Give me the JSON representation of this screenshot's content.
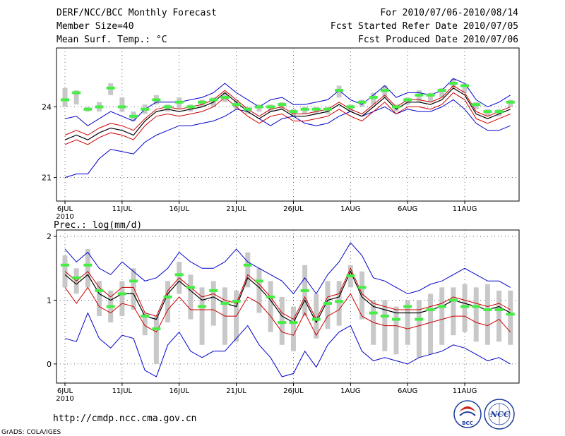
{
  "header": {
    "left": [
      "DERF/NCC/BCC Monthly Forecast",
      "Member Size=40",
      "Mean Surf. Temp.: °C"
    ],
    "right": [
      "For 2010/07/06-2010/08/14",
      "Fcst Started Refer Date 2010/07/05",
      "Fcst Produced Date 2010/07/06"
    ]
  },
  "footer": {
    "url": "http://cmdp.ncc.cma.gov.cn",
    "credit": "GrADS: COLA/IGES"
  },
  "logos": {
    "bcc_text": "BCC",
    "ncc_text": "NCC"
  },
  "colors": {
    "envelope": "#0000cc",
    "spread": "#cc0000",
    "mean": "#000000",
    "observed": "#44ee44",
    "box": "#c8c8c8"
  },
  "chart_data": [
    {
      "type": "line",
      "title": "Mean Surf. Temp.: °C",
      "x_tick_labels": [
        "6JUL",
        "11JUL",
        "16JUL",
        "21JUL",
        "26JUL",
        "1AUG",
        "6AUG",
        "11AUG"
      ],
      "x_tick_days": [
        0,
        5,
        10,
        15,
        20,
        25,
        30,
        35
      ],
      "x_year_label": "2010",
      "ylim": [
        20,
        26.5
      ],
      "yticks": [
        21,
        24
      ],
      "days": 40,
      "series": [
        {
          "name": "max",
          "color": "#0000cc",
          "values": [
            21.0,
            21.15,
            21.15,
            21.8,
            22.2,
            22.1,
            22.0,
            22.5,
            22.8,
            23.0,
            23.2,
            23.2,
            23.3,
            23.4,
            23.6,
            23.9,
            23.8,
            23.5,
            23.2,
            23.5,
            23.6,
            23.3,
            23.2,
            23.3,
            23.6,
            23.8,
            23.6,
            23.8,
            24.0,
            23.7,
            23.9,
            23.8,
            23.8,
            24.0,
            24.3,
            23.9,
            23.3,
            23.0,
            23.0,
            23.2
          ]
        },
        {
          "name": "upper",
          "color": "#cc0000",
          "values": [
            22.8,
            23.0,
            22.8,
            23.1,
            23.3,
            23.2,
            23.0,
            23.5,
            23.9,
            24.0,
            23.9,
            24.0,
            24.1,
            24.3,
            24.7,
            24.3,
            23.9,
            23.6,
            23.9,
            24.0,
            23.7,
            23.7,
            23.8,
            23.9,
            24.2,
            23.9,
            23.7,
            24.1,
            24.5,
            24.0,
            24.3,
            24.3,
            24.2,
            24.4,
            24.9,
            24.6,
            23.8,
            23.6,
            23.8,
            24.0
          ]
        },
        {
          "name": "mean",
          "color": "#000000",
          "values": [
            22.6,
            22.8,
            22.6,
            22.9,
            23.1,
            23.0,
            22.8,
            23.4,
            23.8,
            23.9,
            23.8,
            23.9,
            24.0,
            24.2,
            24.6,
            24.2,
            23.8,
            23.5,
            23.8,
            23.9,
            23.6,
            23.6,
            23.7,
            23.8,
            24.1,
            23.8,
            23.6,
            24.0,
            24.4,
            23.9,
            24.2,
            24.2,
            24.1,
            24.3,
            24.8,
            24.5,
            23.7,
            23.5,
            23.7,
            23.9
          ]
        },
        {
          "name": "lower",
          "color": "#cc0000",
          "values": [
            22.4,
            22.6,
            22.4,
            22.7,
            22.9,
            22.8,
            22.6,
            23.2,
            23.6,
            23.7,
            23.6,
            23.7,
            23.8,
            24.0,
            24.4,
            24.0,
            23.6,
            23.3,
            23.6,
            23.7,
            23.4,
            23.4,
            23.5,
            23.6,
            23.9,
            23.6,
            23.4,
            23.8,
            24.2,
            23.7,
            24.0,
            24.0,
            23.9,
            24.1,
            24.6,
            24.3,
            23.5,
            23.3,
            23.5,
            23.7
          ]
        },
        {
          "name": "min",
          "color": "#0000cc",
          "values": [
            23.5,
            23.6,
            23.2,
            23.5,
            23.8,
            23.6,
            23.4,
            23.9,
            24.2,
            24.2,
            24.2,
            24.3,
            24.4,
            24.6,
            25.0,
            24.6,
            24.3,
            24.0,
            24.3,
            24.4,
            24.1,
            24.1,
            24.2,
            24.3,
            24.7,
            24.3,
            24.1,
            24.5,
            24.9,
            24.4,
            24.6,
            24.6,
            24.5,
            24.7,
            25.2,
            25.0,
            24.3,
            24.0,
            24.2,
            24.5
          ]
        },
        {
          "name": "observed",
          "color": "#44ee44",
          "values": [
            24.3,
            24.6,
            23.9,
            24.0,
            24.8,
            24.0,
            23.6,
            23.9,
            24.3,
            24.0,
            24.2,
            24.0,
            24.2,
            24.3,
            24.4,
            24.1,
            23.9,
            24.0,
            24.0,
            24.1,
            23.8,
            23.9,
            23.9,
            23.9,
            24.7,
            24.0,
            24.2,
            24.4,
            24.7,
            24.0,
            24.3,
            24.5,
            24.5,
            24.7,
            25.0,
            24.9,
            24.1,
            23.8,
            23.8,
            24.2
          ]
        },
        {
          "name": "box_low",
          "color": "#c8c8c8",
          "values": [
            24.0,
            24.1,
            23.8,
            23.8,
            24.5,
            23.8,
            23.4,
            23.7,
            24.1,
            23.8,
            23.9,
            23.8,
            24.0,
            24.0,
            24.2,
            23.9,
            23.7,
            23.8,
            23.8,
            23.9,
            23.6,
            23.7,
            23.7,
            23.7,
            24.4,
            23.8,
            24.0,
            24.1,
            24.4,
            23.8,
            24.1,
            24.2,
            24.2,
            24.4,
            24.8,
            24.6,
            23.9,
            23.6,
            23.6,
            24.0
          ]
        },
        {
          "name": "box_high",
          "color": "#c8c8c8",
          "values": [
            24.8,
            24.7,
            24.0,
            24.2,
            25.0,
            24.4,
            23.8,
            24.1,
            24.5,
            24.1,
            24.4,
            24.1,
            24.3,
            24.4,
            24.6,
            24.3,
            24.0,
            24.1,
            24.1,
            24.2,
            23.9,
            24.0,
            24.0,
            24.0,
            24.9,
            24.1,
            24.3,
            24.6,
            24.9,
            24.1,
            24.4,
            24.7,
            24.6,
            24.8,
            25.2,
            25.0,
            24.2,
            23.9,
            23.9,
            24.3
          ]
        }
      ]
    },
    {
      "type": "line",
      "title": "Prec.: log(mm/d)",
      "x_tick_labels": [
        "6JUL",
        "11JUL",
        "16JUL",
        "21JUL",
        "26JUL",
        "1AUG",
        "6AUG",
        "11AUG"
      ],
      "x_tick_days": [
        0,
        5,
        10,
        15,
        20,
        25,
        30,
        35
      ],
      "x_year_label": "2010",
      "ylim": [
        -0.3,
        2.1
      ],
      "yticks": [
        0,
        1,
        2
      ],
      "days": 40,
      "series": [
        {
          "name": "max",
          "color": "#0000cc",
          "values": [
            1.8,
            1.6,
            1.75,
            1.5,
            1.4,
            1.6,
            1.45,
            1.3,
            1.35,
            1.5,
            1.75,
            1.6,
            1.5,
            1.5,
            1.6,
            1.8,
            1.6,
            1.5,
            1.4,
            1.3,
            1.1,
            1.35,
            1.1,
            1.4,
            1.6,
            1.9,
            1.7,
            1.35,
            1.3,
            1.2,
            1.1,
            1.15,
            1.25,
            1.3,
            1.4,
            1.5,
            1.4,
            1.3,
            1.3,
            1.2
          ]
        },
        {
          "name": "upper",
          "color": "#cc0000",
          "values": [
            1.45,
            1.3,
            1.45,
            1.2,
            1.05,
            1.2,
            1.2,
            0.8,
            0.75,
            1.15,
            1.35,
            1.2,
            1.05,
            1.1,
            1.0,
            0.95,
            1.4,
            1.25,
            1.05,
            0.8,
            0.7,
            1.05,
            0.7,
            1.05,
            1.1,
            1.5,
            1.1,
            0.95,
            0.9,
            0.85,
            0.85,
            0.85,
            0.9,
            0.95,
            1.05,
            1.0,
            0.95,
            0.9,
            0.95,
            0.85
          ]
        },
        {
          "name": "mean",
          "color": "#000000",
          "values": [
            1.4,
            1.25,
            1.4,
            1.1,
            1.0,
            1.1,
            1.1,
            0.75,
            0.7,
            1.1,
            1.3,
            1.15,
            1.0,
            1.05,
            0.95,
            0.9,
            1.35,
            1.2,
            1.0,
            0.75,
            0.65,
            1.0,
            0.65,
            1.0,
            1.05,
            1.45,
            1.05,
            0.9,
            0.85,
            0.8,
            0.8,
            0.8,
            0.85,
            0.9,
            1.0,
            0.95,
            0.9,
            0.85,
            0.9,
            0.8
          ]
        },
        {
          "name": "lower",
          "color": "#cc0000",
          "values": [
            1.2,
            0.95,
            1.2,
            0.9,
            0.8,
            0.95,
            0.9,
            0.6,
            0.5,
            0.85,
            1.05,
            0.85,
            0.85,
            0.85,
            0.75,
            0.75,
            1.05,
            0.95,
            0.75,
            0.5,
            0.45,
            0.8,
            0.45,
            0.75,
            0.85,
            1.1,
            0.75,
            0.65,
            0.6,
            0.6,
            0.55,
            0.6,
            0.65,
            0.7,
            0.75,
            0.75,
            0.65,
            0.6,
            0.7,
            0.5
          ]
        },
        {
          "name": "min",
          "color": "#0000cc",
          "values": [
            0.4,
            0.35,
            0.8,
            0.4,
            0.25,
            0.45,
            0.4,
            -0.1,
            -0.2,
            0.3,
            0.5,
            0.2,
            0.1,
            0.2,
            0.2,
            0.4,
            0.6,
            0.3,
            0.1,
            -0.2,
            -0.15,
            0.2,
            -0.05,
            0.3,
            0.5,
            0.6,
            0.2,
            0.05,
            0.1,
            0.05,
            0.0,
            0.1,
            0.15,
            0.2,
            0.3,
            0.25,
            0.15,
            0.05,
            0.1,
            0.0
          ]
        },
        {
          "name": "observed",
          "color": "#44ee44",
          "values": [
            1.55,
            1.35,
            1.55,
            1.15,
            0.9,
            1.1,
            1.3,
            0.75,
            0.55,
            1.05,
            1.4,
            1.2,
            0.9,
            1.15,
            0.95,
            0.98,
            1.55,
            1.3,
            1.05,
            0.65,
            0.65,
            1.15,
            0.7,
            0.95,
            0.98,
            1.38,
            1.2,
            0.8,
            0.75,
            0.7,
            0.9,
            0.7,
            0.85,
            0.9,
            1.0,
            0.9,
            0.9,
            0.85,
            0.85,
            0.78
          ]
        },
        {
          "name": "box_low",
          "color": "#c8c8c8",
          "values": [
            1.2,
            1.1,
            1.2,
            0.75,
            0.65,
            0.75,
            0.85,
            0.45,
            0.0,
            0.65,
            1.1,
            0.7,
            0.3,
            0.6,
            0.3,
            0.35,
            1.2,
            0.8,
            0.5,
            0.3,
            0.2,
            0.75,
            0.4,
            0.55,
            0.6,
            1.2,
            0.7,
            0.3,
            0.2,
            0.15,
            0.3,
            0.1,
            0.15,
            0.3,
            0.45,
            0.5,
            0.35,
            0.3,
            0.35,
            0.3
          ]
        },
        {
          "name": "box_high",
          "color": "#c8c8c8",
          "values": [
            1.7,
            1.5,
            1.8,
            1.3,
            1.15,
            1.3,
            1.5,
            0.8,
            0.75,
            1.3,
            1.6,
            1.4,
            1.2,
            1.3,
            1.2,
            1.15,
            1.75,
            1.5,
            1.3,
            1.05,
            0.9,
            1.55,
            1.1,
            1.3,
            1.3,
            1.55,
            1.45,
            1.0,
            1.0,
            0.9,
            1.0,
            1.0,
            1.1,
            1.2,
            1.2,
            1.25,
            1.2,
            1.25,
            1.15,
            1.15
          ]
        }
      ]
    }
  ]
}
